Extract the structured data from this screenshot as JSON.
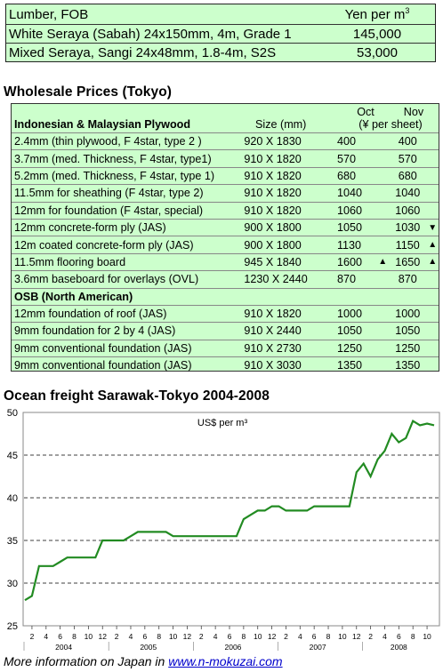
{
  "lumber": {
    "header": {
      "label": "Lumber, FOB",
      "unit": "Yen per m",
      "unit_sup": "3"
    },
    "rows": [
      {
        "name": "White Seraya (Sabah) 24x150mm, 4m, Grade 1",
        "value": "145,000"
      },
      {
        "name": "Mixed Seraya, Sangi 24x48mm, 1.8-4m, S2S",
        "value": "53,000"
      }
    ]
  },
  "wholesale": {
    "title": "Wholesale Prices (Tokyo)",
    "header": {
      "section": "Indonesian & Malaysian Plywood",
      "size": "Size (mm)",
      "oct": "Oct",
      "nov": "Nov",
      "unit": "(¥ per sheet)"
    },
    "rows": [
      {
        "name": "2.4mm  (thin plywood, F 4star, type 2 )",
        "size": "920 X 1830",
        "oct": "400",
        "oct_arrow": "",
        "nov": "400",
        "nov_arrow": ""
      },
      {
        "name": "3.7mm  (med. Thickness,  F 4star, type1)",
        "size": "910 X 1820",
        "oct": "570",
        "oct_arrow": "",
        "nov": "570",
        "nov_arrow": ""
      },
      {
        "name": "5.2mm  (med. Thickness, F 4star, type 1)",
        "size": "910 X 1820",
        "oct": "680",
        "oct_arrow": "",
        "nov": "680",
        "nov_arrow": ""
      },
      {
        "name": "11.5mm  for sheathing (F 4star, type 2)",
        "size": "910 X 1820",
        "oct": "1040",
        "oct_arrow": "",
        "nov": "1040",
        "nov_arrow": ""
      },
      {
        "name": "12mm for foundation (F 4star, special)",
        "size": "910 X 1820",
        "oct": "1060",
        "oct_arrow": "",
        "nov": "1060",
        "nov_arrow": ""
      },
      {
        "name": "12mm concrete-form ply (JAS)",
        "size": "900 X 1800",
        "oct": "1050",
        "oct_arrow": "",
        "nov": "1030",
        "nov_arrow": "down"
      },
      {
        "name": "12m coated concrete-form ply (JAS)",
        "size": "900 X 1800",
        "oct": "1130",
        "oct_arrow": "",
        "nov": "1150",
        "nov_arrow": "up"
      },
      {
        "name": "11.5mm flooring board",
        "size": "945 X 1840",
        "oct": "1600",
        "oct_arrow": "up",
        "nov": "1650",
        "nov_arrow": "up"
      },
      {
        "name": "3.6mm baseboard for overlays (OVL)",
        "size": "1230 X 2440",
        "oct": "870",
        "oct_arrow": "",
        "nov": "870",
        "nov_arrow": ""
      }
    ],
    "osb_section": "OSB (North American)",
    "osb_rows": [
      {
        "name": "12mm foundation of roof (JAS)",
        "size": "910 X 1820",
        "oct": "1000",
        "nov": "1000"
      },
      {
        "name": "9mm foundation for 2 by 4 (JAS)",
        "size": "910 X 2440",
        "oct": "1050",
        "nov": "1050"
      },
      {
        "name": "9mm conventional foundation (JAS)",
        "size": "910 X 2730",
        "oct": "1250",
        "nov": "1250"
      },
      {
        "name": "9mm conventional foundation (JAS)",
        "size": "910 X 3030",
        "oct": "1350",
        "nov": "1350"
      }
    ]
  },
  "freight": {
    "title": "Ocean freight Sarawak-Tokyo 2004-2008"
  },
  "chart_data": {
    "type": "line",
    "title": "US$ per m³",
    "ylim": [
      25,
      50
    ],
    "yticks": [
      25,
      30,
      35,
      40,
      45,
      50
    ],
    "grid": "dashed horizontal at 30, 35, 40, 45",
    "x_tick_labels": [
      "2",
      "4",
      "6",
      "8",
      "10",
      "12",
      "2",
      "4",
      "6",
      "8",
      "10",
      "12",
      "2",
      "4",
      "6",
      "8",
      "10",
      "12",
      "2",
      "4",
      "6",
      "8",
      "10",
      "12",
      "2",
      "4",
      "6",
      "8",
      "10"
    ],
    "years": [
      {
        "label": "2004",
        "start": 0,
        "end": 11
      },
      {
        "label": "2005",
        "start": 12,
        "end": 23
      },
      {
        "label": "2006",
        "start": 24,
        "end": 35
      },
      {
        "label": "2007",
        "start": 36,
        "end": 47
      },
      {
        "label": "2008",
        "start": 48,
        "end": 58
      }
    ],
    "series": [
      {
        "color": "#228b22",
        "x_start": "2004-01",
        "values": [
          28,
          28.5,
          32,
          32,
          32,
          32.5,
          33,
          33,
          33,
          33,
          33,
          35,
          35,
          35,
          35,
          35.5,
          36,
          36,
          36,
          36,
          36,
          35.5,
          35.5,
          35.5,
          35.5,
          35.5,
          35.5,
          35.5,
          35.5,
          35.5,
          35.5,
          37.5,
          38,
          38.5,
          38.5,
          39,
          39,
          38.5,
          38.5,
          38.5,
          38.5,
          39,
          39,
          39,
          39,
          39,
          39,
          43,
          44,
          42.5,
          44.5,
          45.5,
          47.5,
          46.5,
          47,
          49,
          48.5,
          48.7,
          48.5
        ]
      }
    ]
  },
  "footer": {
    "text": "More information on Japan in ",
    "link": "www.n-mokuzai.com"
  }
}
